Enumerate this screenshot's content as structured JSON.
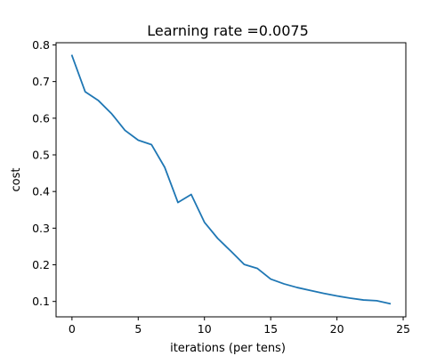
{
  "chart_data": {
    "type": "line",
    "title": "Learning rate =0.0075",
    "xlabel": "iterations (per tens)",
    "ylabel": "cost",
    "xlim": [
      -1.2,
      25.2
    ],
    "ylim": [
      0.058,
      0.806
    ],
    "xticks": [
      0,
      5,
      10,
      15,
      20,
      25
    ],
    "yticks": [
      0.1,
      0.2,
      0.3,
      0.4,
      0.5,
      0.6,
      0.7,
      0.8
    ],
    "xtick_labels": [
      "0",
      "5",
      "10",
      "15",
      "20",
      "25"
    ],
    "ytick_labels": [
      "0.1",
      "0.2",
      "0.3",
      "0.4",
      "0.5",
      "0.6",
      "0.7",
      "0.8"
    ],
    "grid": false,
    "series": [
      {
        "color": "#1f77b4",
        "x": [
          0,
          1,
          2,
          3,
          4,
          5,
          6,
          7,
          8,
          9,
          10,
          11,
          12,
          13,
          14,
          15,
          16,
          17,
          18,
          19,
          20,
          21,
          22,
          23,
          24
        ],
        "y": [
          0.771,
          0.672,
          0.648,
          0.612,
          0.567,
          0.54,
          0.528,
          0.466,
          0.37,
          0.392,
          0.316,
          0.272,
          0.237,
          0.201,
          0.19,
          0.161,
          0.148,
          0.138,
          0.13,
          0.122,
          0.115,
          0.109,
          0.104,
          0.102,
          0.094
        ]
      }
    ]
  }
}
